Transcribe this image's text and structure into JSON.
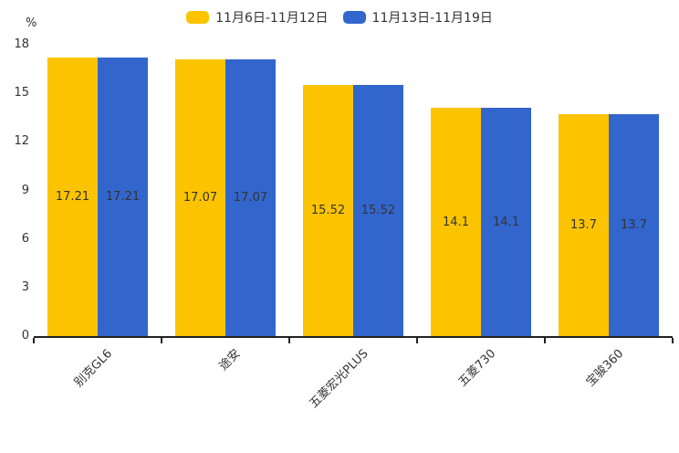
{
  "chart_data": {
    "type": "bar",
    "categories": [
      "别克GL6",
      "途安",
      "五菱宏光PLUS",
      "五菱730",
      "宝骏360"
    ],
    "series": [
      {
        "name": "11月6日-11月12日",
        "color": "#FCC400",
        "values": [
          17.21,
          17.07,
          15.52,
          14.1,
          13.7
        ]
      },
      {
        "name": "11月13日-11月19日",
        "color": "#3366CC",
        "values": [
          17.21,
          17.07,
          15.52,
          14.1,
          13.7
        ]
      }
    ],
    "title": "",
    "xlabel": "",
    "ylabel": "%",
    "ylim": [
      0,
      18
    ],
    "yticks": [
      0,
      3,
      6,
      9,
      12,
      15,
      18
    ],
    "grid": false,
    "legend_position": "top",
    "value_labels": true,
    "value_label_color": "#333333",
    "axis_color": "#222222",
    "category_label_rotation_deg": 45
  }
}
